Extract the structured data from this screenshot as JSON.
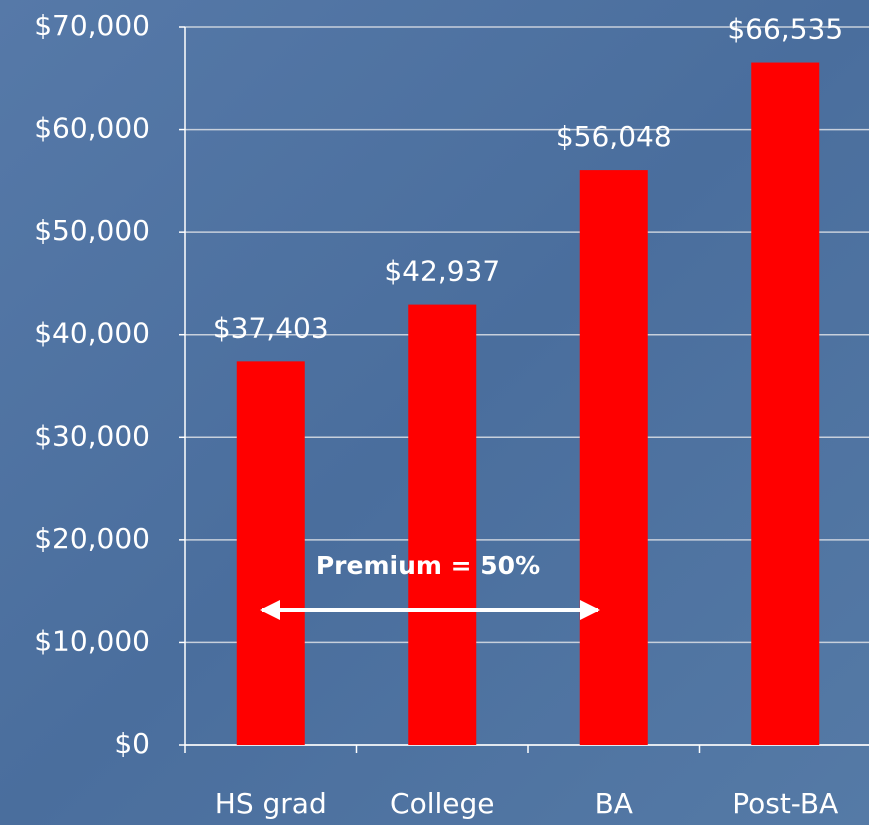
{
  "chart_data": {
    "type": "bar",
    "categories": [
      "HS grad",
      "College",
      "BA",
      "Post-BA"
    ],
    "values": [
      37403,
      42937,
      56048,
      66535
    ],
    "value_labels": [
      "$37,403",
      "$42,937",
      "$56,048",
      "$66,535"
    ],
    "color": "#ff0000",
    "ylim": [
      0,
      70000
    ],
    "yticks": [
      {
        "value": 0,
        "label": "$0"
      },
      {
        "value": 10000,
        "label": "$10,000"
      },
      {
        "value": 20000,
        "label": "$20,000"
      },
      {
        "value": 30000,
        "label": "$30,000"
      },
      {
        "value": 40000,
        "label": "$40,000"
      },
      {
        "value": 50000,
        "label": "$50,000"
      },
      {
        "value": 60000,
        "label": "$60,000"
      },
      {
        "value": 70000,
        "label": "$70,000"
      }
    ],
    "grid": true,
    "annotation": "Premium = 50%"
  }
}
